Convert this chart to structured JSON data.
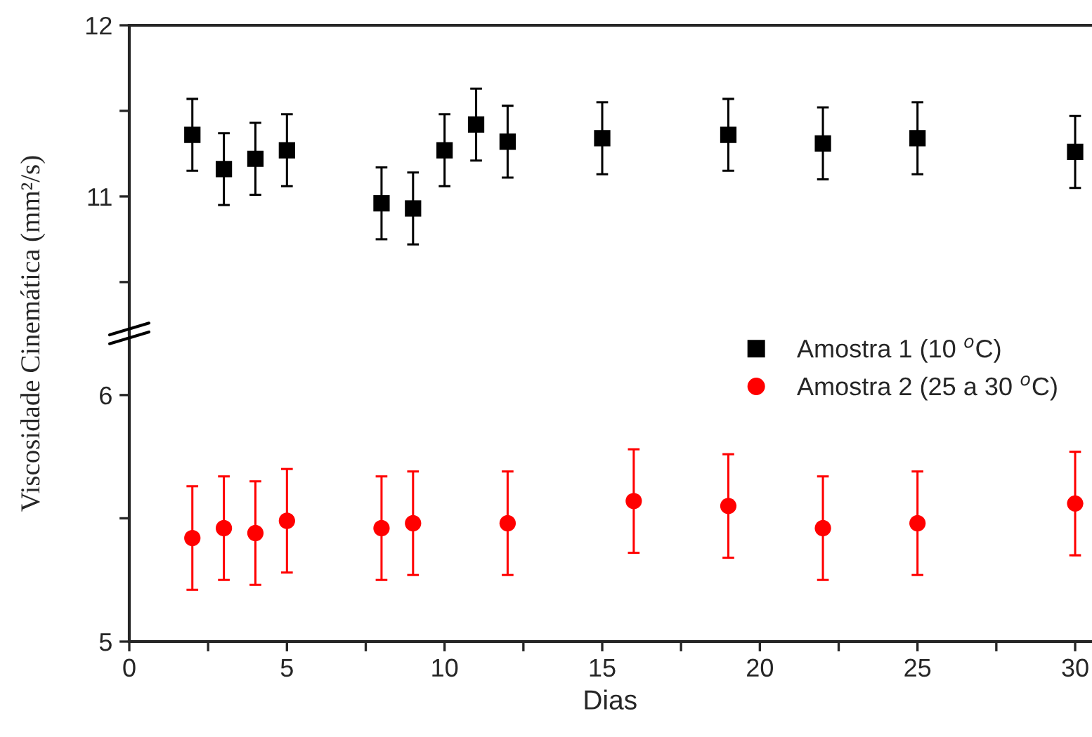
{
  "chart_data": [
    {
      "type": "scatter",
      "ylabel": "Viscosidade Cinemática (mm²/s)",
      "x": [
        2,
        3,
        4,
        5,
        8,
        9,
        10,
        11,
        12,
        15,
        19,
        22,
        25,
        30
      ],
      "series": [
        {
          "name": "Amostra 1 (10 $^{o}$C)",
          "color": "#000000",
          "marker": "square",
          "values": [
            11.36,
            11.16,
            11.22,
            11.27,
            10.96,
            10.93,
            11.27,
            11.42,
            11.32,
            11.34,
            11.36,
            11.31,
            11.34,
            11.26
          ],
          "errors": [
            0.21,
            0.21,
            0.21,
            0.21,
            0.21,
            0.21,
            0.21,
            0.21,
            0.21,
            0.21,
            0.21,
            0.21,
            0.21,
            0.21
          ]
        }
      ],
      "xlim": [
        0,
        30.5
      ],
      "ylim": [
        10.2,
        12
      ],
      "yticks": [
        {
          "value": 10.5,
          "label": null
        },
        11,
        {
          "value": 11.5,
          "label": null
        },
        12
      ],
      "tick_labels": "y",
      "grid": false
    },
    {
      "type": "scatter",
      "xlabel": "Dias",
      "x": [
        2,
        3,
        4,
        5,
        8,
        9,
        12,
        16,
        19,
        22,
        25,
        30
      ],
      "series": [
        {
          "name": "Amostra 2 (25 a 30 $^{o}$C)",
          "color": "#ff0000",
          "marker": "circle",
          "values": [
            5.42,
            5.46,
            5.44,
            5.49,
            5.46,
            5.48,
            5.48,
            5.57,
            5.55,
            5.46,
            5.48,
            5.56
          ],
          "errors": [
            0.21,
            0.21,
            0.21,
            0.21,
            0.21,
            0.21,
            0.21,
            0.21,
            0.21,
            0.21,
            0.21,
            0.21
          ]
        }
      ],
      "xlim": [
        0,
        30.5
      ],
      "xticks": [
        0,
        {
          "value": 2.5,
          "label": null
        },
        5,
        {
          "value": 7.5,
          "label": null
        },
        10,
        {
          "value": 12.5,
          "label": null
        },
        15,
        {
          "value": 17.5,
          "label": null
        },
        20,
        {
          "value": 22.5,
          "label": null
        },
        25,
        {
          "value": 27.5,
          "label": null
        },
        30
      ],
      "ylim": [
        5,
        6.25
      ],
      "yticks": [
        5,
        {
          "value": 5.5,
          "label": null
        },
        6
      ],
      "legend": "top right",
      "grid": false
    }
  ]
}
